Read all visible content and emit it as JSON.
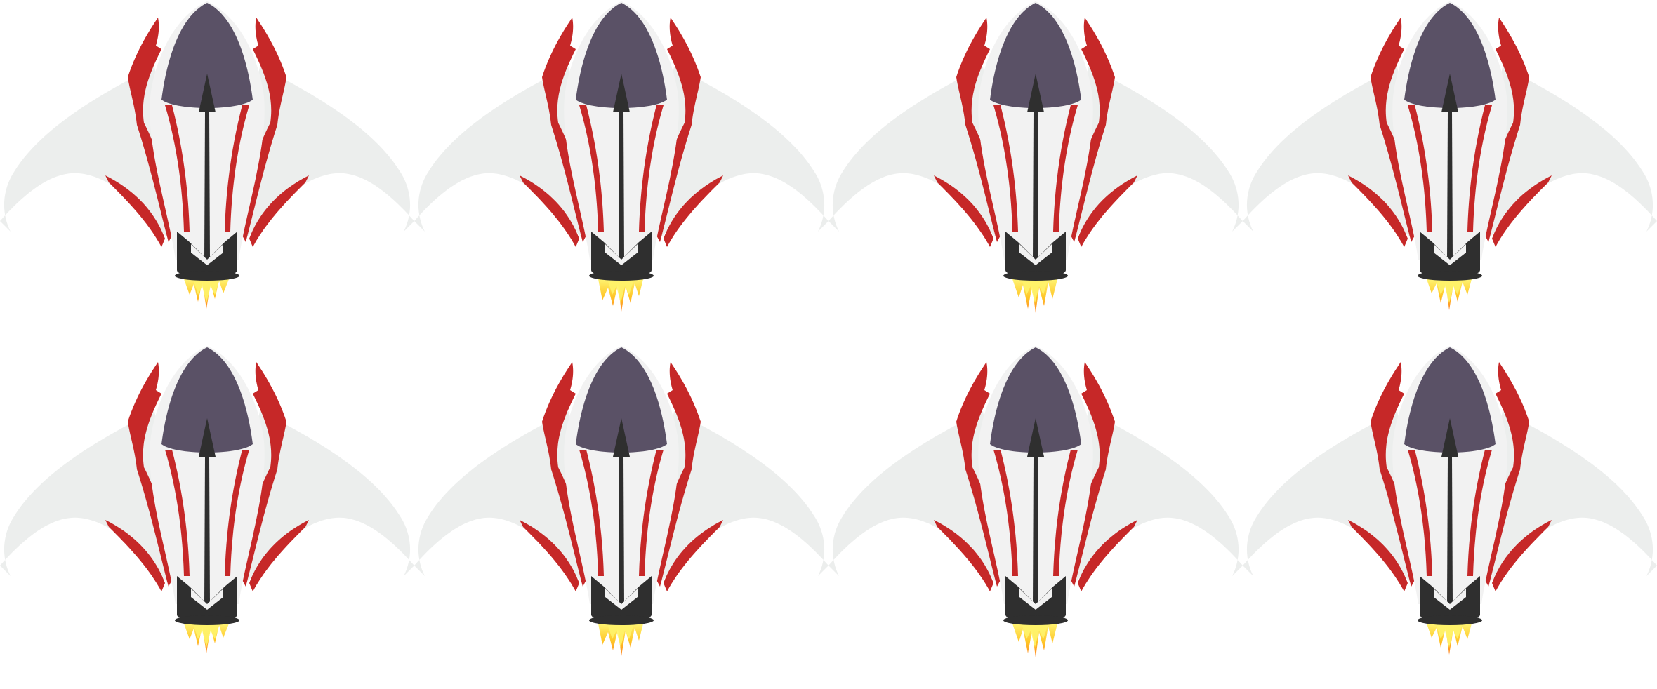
{
  "sprite_sheet": {
    "rows": 2,
    "columns": 4,
    "frames": [
      {
        "name": "spaceship-frame",
        "flame_variant": 1
      },
      {
        "name": "spaceship-frame",
        "flame_variant": 2
      },
      {
        "name": "spaceship-frame",
        "flame_variant": 3
      },
      {
        "name": "spaceship-frame",
        "flame_variant": 4
      },
      {
        "name": "spaceship-frame",
        "flame_variant": 1
      },
      {
        "name": "spaceship-frame",
        "flame_variant": 2
      },
      {
        "name": "spaceship-frame",
        "flame_variant": 3
      },
      {
        "name": "spaceship-frame",
        "flame_variant": 4
      }
    ]
  },
  "colors": {
    "background": "#ffffff",
    "wing": "#eceeed",
    "hull_white": "#f2f2f2",
    "stripe_red": "#c62828",
    "canopy": "#5a5166",
    "engine_dark": "#2f2f2f",
    "flame_outer": "#ff7a1a",
    "flame_mid": "#ffc21a",
    "flame_inner": "#fff36a"
  }
}
